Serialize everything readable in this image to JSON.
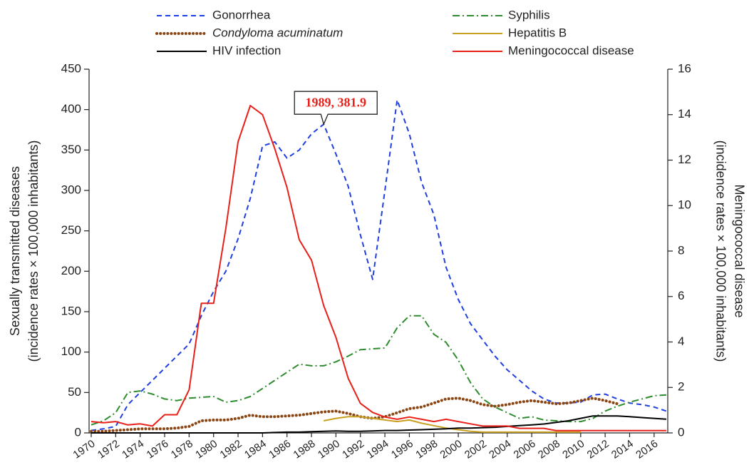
{
  "chart_data": {
    "type": "line",
    "ylabel": [
      "Sexually transmitted diseases",
      "(incidence rates × 100,000 inhabitants)"
    ],
    "y2label": [
      "Meningococcal disease",
      "(incidence rates × 100,000 inhabitants)"
    ],
    "x": [
      1970,
      1971,
      1972,
      1973,
      1974,
      1975,
      1976,
      1977,
      1978,
      1979,
      1980,
      1981,
      1982,
      1983,
      1984,
      1985,
      1986,
      1987,
      1988,
      1989,
      1990,
      1991,
      1992,
      1993,
      1994,
      1995,
      1996,
      1997,
      1998,
      1999,
      2000,
      2001,
      2002,
      2003,
      2004,
      2005,
      2006,
      2007,
      2008,
      2009,
      2010,
      2011,
      2012,
      2013,
      2014,
      2015,
      2016,
      2017
    ],
    "xlim": [
      1970,
      2017
    ],
    "xticks": [
      1970,
      1972,
      1974,
      1976,
      1978,
      1980,
      1982,
      1984,
      1986,
      1988,
      1990,
      1992,
      1994,
      1996,
      1998,
      2000,
      2002,
      2004,
      2006,
      2008,
      2010,
      2012,
      2014,
      2016
    ],
    "ylim": [
      0,
      450
    ],
    "yticks": [
      0,
      50,
      100,
      150,
      200,
      250,
      300,
      350,
      400,
      450
    ],
    "y2lim": [
      0,
      16
    ],
    "y2ticks": [
      0,
      2,
      4,
      6,
      8,
      10,
      12,
      14,
      16
    ],
    "series": [
      {
        "name": "Gonorrhea",
        "color": "#1f3fe0",
        "linestyle": "dashed",
        "values": [
          3,
          5,
          8,
          35,
          50,
          65,
          80,
          95,
          110,
          145,
          175,
          200,
          240,
          290,
          355,
          360,
          340,
          350,
          370,
          381.9,
          345,
          305,
          245,
          190,
          300,
          412,
          370,
          310,
          270,
          205,
          165,
          135,
          115,
          95,
          78,
          65,
          52,
          42,
          37,
          37,
          38,
          47,
          48,
          42,
          37,
          35,
          32,
          27
        ]
      },
      {
        "name": "Syphilis",
        "color": "#2e8b2e",
        "linestyle": "dashdot",
        "values": [
          10,
          15,
          25,
          50,
          52,
          48,
          42,
          40,
          43,
          44,
          45,
          38,
          40,
          45,
          55,
          65,
          75,
          85,
          83,
          83,
          88,
          95,
          103,
          104,
          105,
          130,
          145,
          145,
          122,
          112,
          90,
          62,
          42,
          32,
          25,
          18,
          20,
          16,
          15,
          14,
          14,
          18,
          27,
          33,
          38,
          42,
          46,
          47
        ]
      },
      {
        "name": "Condyloma acuminatum",
        "color": "#8b4513",
        "linestyle": "dotted",
        "italic": true,
        "values": [
          2,
          2,
          3,
          4,
          5,
          5,
          5,
          6,
          8,
          15,
          16,
          16,
          18,
          22,
          20,
          20,
          21,
          22,
          24,
          26,
          27,
          24,
          20,
          18,
          20,
          25,
          30,
          32,
          37,
          42,
          43,
          40,
          35,
          33,
          35,
          38,
          40,
          38,
          36,
          37,
          40,
          43,
          40,
          36,
          null,
          null,
          null,
          null
        ]
      },
      {
        "name": "Hepatitis B",
        "color": "#c8a020",
        "linestyle": "solid",
        "values": [
          null,
          null,
          null,
          null,
          null,
          null,
          null,
          null,
          null,
          null,
          null,
          null,
          null,
          null,
          null,
          null,
          null,
          null,
          null,
          15,
          18,
          20,
          20,
          18,
          16,
          14,
          16,
          12,
          9,
          6,
          4,
          2,
          1,
          1,
          1,
          1,
          1,
          1,
          1,
          1,
          1,
          null,
          null,
          null,
          null,
          null,
          null,
          null
        ]
      },
      {
        "name": "HIV infection",
        "color": "#000000",
        "linestyle": "solid",
        "values": [
          0,
          0,
          0,
          0,
          0,
          0,
          0,
          0,
          0,
          0,
          0,
          0,
          0,
          0,
          0,
          0.5,
          1,
          1,
          1.5,
          2,
          2.5,
          2,
          2,
          2.5,
          3,
          3,
          3.5,
          4,
          4.5,
          5,
          6,
          6,
          6.5,
          7,
          8,
          9,
          10,
          11,
          13,
          15,
          18,
          21,
          21,
          21,
          20,
          19,
          18,
          17
        ]
      },
      {
        "name": "Meningococcal disease",
        "color": "#e8201a",
        "linestyle": "solid",
        "axis": "y2",
        "values": [
          0.5,
          0.45,
          0.5,
          0.35,
          0.4,
          0.3,
          0.8,
          0.8,
          1.9,
          5.7,
          5.7,
          9.0,
          12.8,
          14.4,
          14.0,
          12.5,
          10.8,
          8.5,
          7.6,
          5.6,
          4.2,
          2.4,
          1.3,
          0.9,
          0.7,
          0.6,
          0.7,
          0.6,
          0.5,
          0.6,
          0.5,
          0.4,
          0.3,
          0.3,
          0.3,
          0.2,
          0.2,
          0.2,
          0.1,
          0.1,
          0.1,
          0.1,
          0.1,
          0.1,
          0.1,
          0.1,
          0.1,
          0.1
        ]
      }
    ],
    "annotation": {
      "text": "1989, 381.9",
      "x": 1989,
      "y": 381.9
    }
  }
}
